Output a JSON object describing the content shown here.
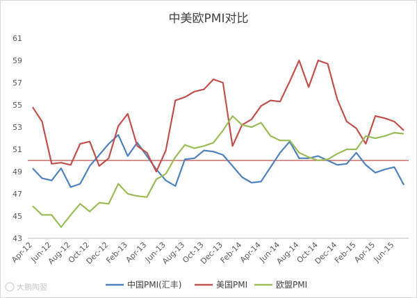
{
  "watermark": "大鹏陶翌",
  "chart_data": {
    "type": "line",
    "title": "中美欧PMI对比",
    "ylim": [
      43,
      61
    ],
    "yticks": [
      43,
      45,
      47,
      49,
      51,
      53,
      55,
      57,
      59,
      61
    ],
    "grid": false,
    "reference_line": {
      "y": 50,
      "color": "#c0504d"
    },
    "legend_position": "bottom",
    "x": [
      "Apr-12",
      "May-12",
      "Jun-12",
      "Jul-12",
      "Aug-12",
      "Sep-12",
      "Oct-12",
      "Nov-12",
      "Dec-12",
      "Jan-13",
      "Feb-13",
      "Mar-13",
      "Apr-13",
      "May-13",
      "Jun-13",
      "Jul-13",
      "Aug-13",
      "Sep-13",
      "Oct-13",
      "Nov-13",
      "Dec-13",
      "Jan-14",
      "Feb-14",
      "Mar-14",
      "Apr-14",
      "May-14",
      "Jun-14",
      "Jul-14",
      "Aug-14",
      "Sep-14",
      "Oct-14",
      "Nov-14",
      "Dec-14",
      "Jan-15",
      "Feb-15",
      "Mar-15",
      "Apr-15",
      "May-15",
      "Jun-15",
      "Jul-15"
    ],
    "x_tick_labels": [
      "Apr-12",
      "Jun-12",
      "Aug-12",
      "Oct-12",
      "Dec-12",
      "Feb-13",
      "Apr-13",
      "Jun-13",
      "Aug-13",
      "Oct-13",
      "Dec-13",
      "Feb-14",
      "Apr-14",
      "Jun-14",
      "Aug-14",
      "Oct-14",
      "Dec-14",
      "Feb-15",
      "Apr-15",
      "Jun-15"
    ],
    "series": [
      {
        "name": "中国PMI(汇丰)",
        "color": "#4f81bd",
        "values": [
          49.3,
          48.4,
          48.2,
          49.3,
          47.6,
          47.9,
          49.5,
          50.5,
          51.5,
          52.3,
          50.4,
          51.6,
          50.4,
          49.2,
          48.2,
          47.7,
          50.1,
          50.2,
          50.9,
          50.8,
          50.5,
          49.5,
          48.5,
          48.0,
          48.1,
          49.4,
          50.7,
          51.7,
          50.2,
          50.2,
          50.4,
          50.0,
          49.6,
          49.7,
          50.7,
          49.6,
          48.9,
          49.2,
          49.4,
          47.8
        ]
      },
      {
        "name": "美国PMI",
        "color": "#c0504d",
        "values": [
          54.8,
          53.5,
          49.7,
          49.8,
          49.6,
          51.5,
          51.7,
          49.5,
          50.2,
          53.1,
          54.2,
          51.3,
          50.7,
          49.0,
          50.9,
          55.4,
          55.7,
          56.2,
          56.4,
          57.3,
          57.0,
          51.3,
          53.2,
          53.7,
          54.9,
          55.4,
          55.3,
          57.1,
          59.0,
          56.6,
          59.0,
          58.7,
          55.5,
          53.5,
          52.9,
          51.5,
          54.0,
          53.8,
          53.5,
          52.7
        ]
      },
      {
        "name": "欧盟PMI",
        "color": "#9bbb59",
        "values": [
          45.9,
          45.1,
          45.1,
          44.0,
          45.1,
          46.1,
          45.4,
          46.2,
          46.1,
          47.9,
          47.0,
          46.8,
          46.7,
          48.3,
          48.8,
          50.3,
          51.4,
          51.1,
          51.3,
          51.6,
          52.7,
          54.0,
          53.2,
          53.0,
          53.4,
          52.2,
          51.8,
          51.8,
          50.7,
          50.3,
          50.0,
          50.1,
          50.6,
          51.0,
          51.0,
          52.2,
          52.0,
          52.2,
          52.5,
          52.4
        ]
      }
    ]
  }
}
